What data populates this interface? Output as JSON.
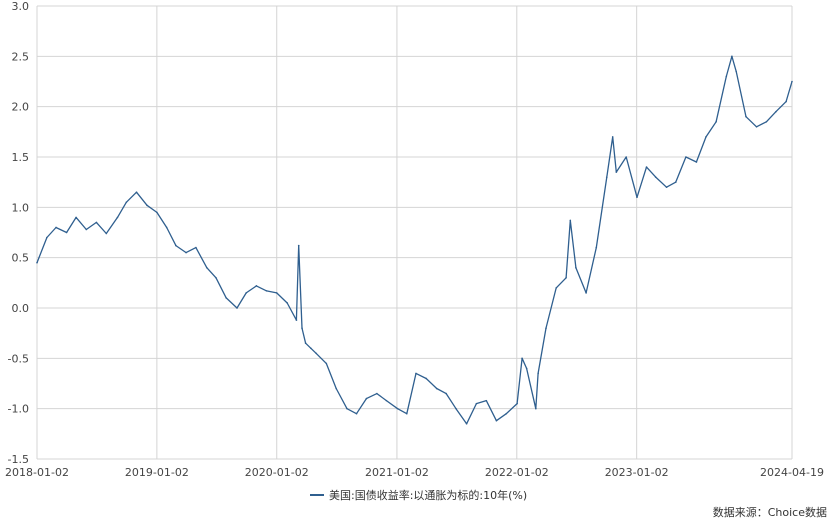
{
  "chart_data": {
    "type": "line",
    "title": "",
    "xlabel": "",
    "ylabel": "",
    "ylim": [
      -1.5,
      3.0
    ],
    "yticks": [
      -1.5,
      -1.0,
      -0.5,
      0.0,
      0.5,
      1.0,
      1.5,
      2.0,
      2.5,
      3.0
    ],
    "ytick_labels": [
      "-1.5",
      "-1.0",
      "-0.5",
      "0.0",
      "0.5",
      "1.0",
      "1.5",
      "2.0",
      "2.5",
      "3.0"
    ],
    "xlim": [
      "2018-01-02",
      "2024-04-19"
    ],
    "xticks": [
      "2018-01-02",
      "2019-01-02",
      "2020-01-02",
      "2021-01-02",
      "2022-01-02",
      "2023-01-02",
      "2024-04-19"
    ],
    "grid": true,
    "legend_position": "bottom-center",
    "line_color": "#2f5f8f",
    "series": [
      {
        "name": "美国:国债收益率:以通胀为标的:10年(%)",
        "x": [
          "2018-01-02",
          "2018-02-01",
          "2018-03-01",
          "2018-04-02",
          "2018-05-01",
          "2018-06-01",
          "2018-07-02",
          "2018-08-01",
          "2018-09-04",
          "2018-10-01",
          "2018-11-01",
          "2018-12-03",
          "2019-01-02",
          "2019-02-01",
          "2019-03-01",
          "2019-04-01",
          "2019-05-01",
          "2019-06-03",
          "2019-07-01",
          "2019-08-01",
          "2019-09-03",
          "2019-10-01",
          "2019-11-01",
          "2019-12-02",
          "2020-01-02",
          "2020-02-03",
          "2020-03-02",
          "2020-03-09",
          "2020-03-19",
          "2020-03-30",
          "2020-04-15",
          "2020-05-01",
          "2020-06-01",
          "2020-07-01",
          "2020-08-03",
          "2020-09-01",
          "2020-10-01",
          "2020-11-02",
          "2020-12-01",
          "2021-01-04",
          "2021-02-01",
          "2021-03-01",
          "2021-04-01",
          "2021-05-03",
          "2021-06-01",
          "2021-07-01",
          "2021-08-02",
          "2021-09-01",
          "2021-10-01",
          "2021-11-01",
          "2021-12-01",
          "2022-01-03",
          "2022-01-18",
          "2022-02-01",
          "2022-03-01",
          "2022-03-08",
          "2022-04-01",
          "2022-05-02",
          "2022-06-01",
          "2022-06-14",
          "2022-07-01",
          "2022-08-01",
          "2022-09-01",
          "2022-10-03",
          "2022-10-21",
          "2022-11-01",
          "2022-12-01",
          "2023-01-03",
          "2023-02-01",
          "2023-03-01",
          "2023-04-03",
          "2023-05-01",
          "2023-06-01",
          "2023-07-03",
          "2023-08-01",
          "2023-09-01",
          "2023-10-02",
          "2023-10-19",
          "2023-11-01",
          "2023-12-01",
          "2024-01-02",
          "2024-02-01",
          "2024-03-01",
          "2024-04-01",
          "2024-04-19"
        ],
        "values": [
          0.45,
          0.7,
          0.8,
          0.75,
          0.9,
          0.78,
          0.85,
          0.74,
          0.9,
          1.05,
          1.15,
          1.02,
          0.95,
          0.8,
          0.62,
          0.55,
          0.6,
          0.4,
          0.3,
          0.1,
          0.0,
          0.15,
          0.22,
          0.17,
          0.15,
          0.05,
          -0.12,
          0.62,
          -0.2,
          -0.35,
          -0.4,
          -0.45,
          -0.55,
          -0.8,
          -1.0,
          -1.05,
          -0.9,
          -0.85,
          -0.92,
          -1.0,
          -1.05,
          -0.65,
          -0.7,
          -0.8,
          -0.85,
          -1.0,
          -1.15,
          -0.95,
          -0.92,
          -1.12,
          -1.05,
          -0.95,
          -0.5,
          -0.6,
          -1.0,
          -0.65,
          -0.2,
          0.2,
          0.3,
          0.87,
          0.4,
          0.15,
          0.6,
          1.3,
          1.7,
          1.35,
          1.5,
          1.1,
          1.4,
          1.3,
          1.2,
          1.25,
          1.5,
          1.45,
          1.7,
          1.85,
          2.3,
          2.5,
          2.35,
          1.9,
          1.8,
          1.85,
          1.95,
          2.05,
          2.25
        ]
      }
    ]
  },
  "source_text": "数据来源：Choice数据"
}
